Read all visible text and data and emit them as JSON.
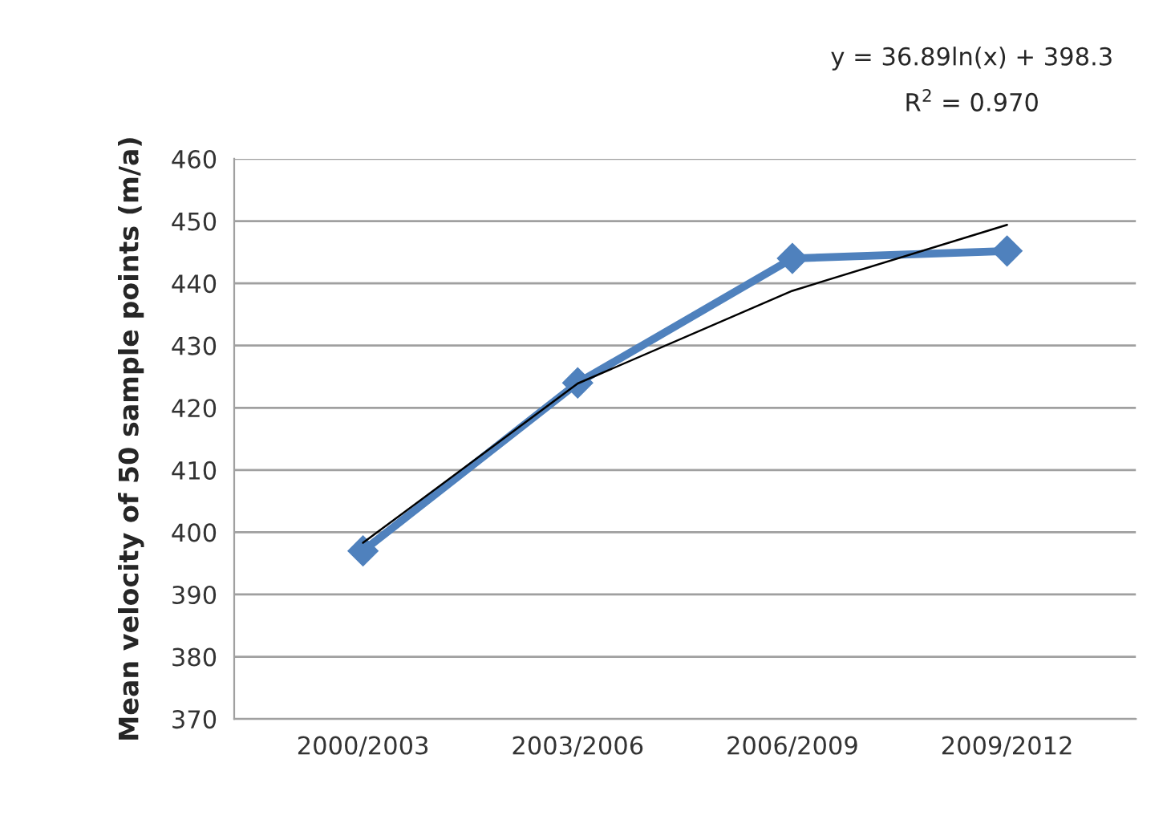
{
  "chart_data": {
    "type": "line",
    "ylabel": "Mean velocity of 50 sample points (m/a)",
    "categories": [
      "2000/2003",
      "2003/2006",
      "2006/2009",
      "2009/2012"
    ],
    "series": [
      {
        "color": "#4f81bd",
        "values": [
          397,
          424,
          444,
          445.2
        ],
        "marker": "diamond",
        "line_style": "solid"
      },
      {
        "type": "line",
        "color": "#000000",
        "values": [
          398.3,
          423.9,
          438.8,
          449.4
        ],
        "marker": "none",
        "line_style": "solid"
      }
    ],
    "annotations": [
      "y = 36.89ln(x) + 398.3",
      "R$^{2}$ = 0.970"
    ],
    "ylim": [
      370,
      460
    ],
    "yticks": [
      370,
      380,
      390,
      400,
      410,
      420,
      430,
      440,
      450,
      460
    ],
    "grid": "y",
    "legend": false
  }
}
